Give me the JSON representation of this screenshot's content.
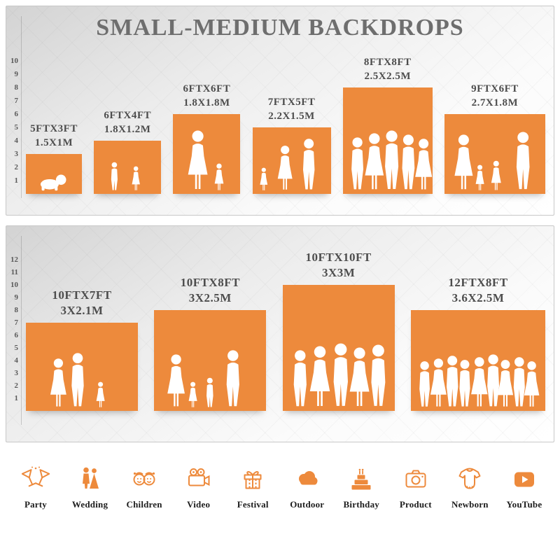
{
  "title": "SMALL-MEDIUM BACKDROPS",
  "colors": {
    "orange": "#ED8A3C",
    "title_gray": "#6E6E6E"
  },
  "chart_data": [
    {
      "type": "bar",
      "title": "SMALL-MEDIUM BACKDROPS",
      "axis_ticks": [
        1,
        2,
        3,
        4,
        5,
        6,
        7,
        8,
        9,
        10
      ],
      "ylim": [
        0,
        10
      ],
      "bars": [
        {
          "size_ft": "5FTX3FT",
          "size_m": "1.5X1M",
          "width_ft": 5,
          "height_ft": 3,
          "scene": "baby-crawling"
        },
        {
          "size_ft": "6FTX4FT",
          "size_m": "1.8X1.2M",
          "width_ft": 6,
          "height_ft": 4,
          "scene": "two-children"
        },
        {
          "size_ft": "6FTX6FT",
          "size_m": "1.8X1.8M",
          "width_ft": 6,
          "height_ft": 6,
          "scene": "mother-with-child"
        },
        {
          "size_ft": "7FTX5FT",
          "size_m": "2.2X1.5M",
          "width_ft": 7,
          "height_ft": 5,
          "scene": "family-of-three"
        },
        {
          "size_ft": "8FTX8FT",
          "size_m": "2.5X2.5M",
          "width_ft": 8,
          "height_ft": 8,
          "scene": "group-posing"
        },
        {
          "size_ft": "9FTX6FT",
          "size_m": "2.7X1.8M",
          "width_ft": 9,
          "height_ft": 6,
          "scene": "family-of-four"
        }
      ]
    },
    {
      "type": "bar",
      "axis_ticks": [
        1,
        2,
        3,
        4,
        5,
        6,
        7,
        8,
        9,
        10,
        11,
        12
      ],
      "ylim": [
        0,
        12
      ],
      "bars": [
        {
          "size_ft": "10FTX7FT",
          "size_m": "3X2.1M",
          "width_ft": 10,
          "height_ft": 7,
          "scene": "couple-with-child"
        },
        {
          "size_ft": "10FTX8FT",
          "size_m": "3X2.5M",
          "width_ft": 10,
          "height_ft": 8,
          "scene": "family-holding-hands"
        },
        {
          "size_ft": "10FTX10FT",
          "size_m": "3X3M",
          "width_ft": 10,
          "height_ft": 10,
          "scene": "group-posing-large"
        },
        {
          "size_ft": "12FTX8FT",
          "size_m": "3.6X2.5M",
          "width_ft": 12,
          "height_ft": 8,
          "scene": "large-crowd"
        }
      ]
    }
  ],
  "categories": [
    {
      "label": "Party",
      "icon": "party-icon"
    },
    {
      "label": "Wedding",
      "icon": "wedding-icon"
    },
    {
      "label": "Children",
      "icon": "children-icon"
    },
    {
      "label": "Video",
      "icon": "video-icon"
    },
    {
      "label": "Festival",
      "icon": "festival-icon"
    },
    {
      "label": "Outdoor",
      "icon": "outdoor-icon"
    },
    {
      "label": "Birthday",
      "icon": "birthday-icon"
    },
    {
      "label": "Product",
      "icon": "product-icon"
    },
    {
      "label": "Newborn",
      "icon": "newborn-icon"
    },
    {
      "label": "YouTube",
      "icon": "youtube-icon"
    }
  ]
}
